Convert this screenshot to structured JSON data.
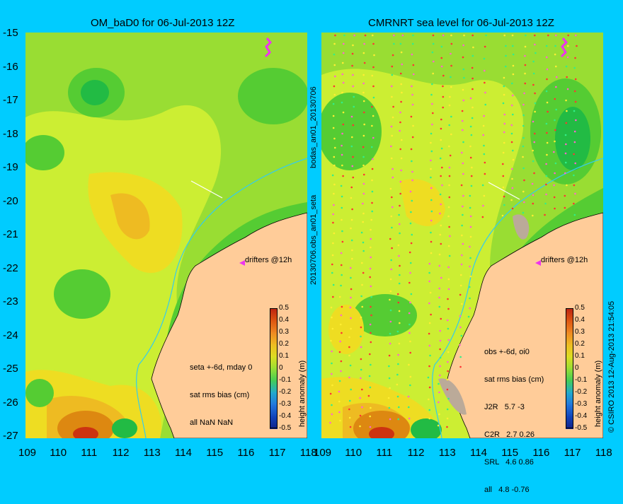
{
  "left_panel": {
    "title": "OM_baD0 for 06-Jul-2013 12Z",
    "drifters_label": "drifters @12h",
    "info_lines": [
      "seta +-6d, mday 0",
      "sat rms bias (cm)",
      "all NaN NaN"
    ]
  },
  "right_panel": {
    "title": "CMRNRT sea level  for 06-Jul-2013 12Z",
    "drifters_label": "drifters @12h",
    "info_lines": [
      "obs +-6d, oi0",
      "sat rms bias (cm)",
      "J2R   5.7 -3",
      "C2R   2.7 0.26",
      "SRL   4.6 0.86",
      "all   4.8 -0.76"
    ]
  },
  "side_labels": {
    "middle_top": "bodas_an01_20130706",
    "middle_bottom": "20130706.obs_an01_seta",
    "right_edge": "© CSIRO 2013  12-Aug-2013 21:54:05"
  },
  "colorbar": {
    "label": "height anomaly (m)",
    "ticks": [
      "0.5",
      "0.4",
      "0.3",
      "0.2",
      "0.1",
      "0",
      "-0.1",
      "-0.2",
      "-0.3",
      "-0.4",
      "-0.5"
    ]
  },
  "axes": {
    "y_ticks": [
      "-15",
      "-16",
      "-17",
      "-18",
      "-19",
      "-20",
      "-21",
      "-22",
      "-23",
      "-24",
      "-25",
      "-26",
      "-27"
    ],
    "x_ticks_left": [
      "109",
      "110",
      "111",
      "112",
      "113",
      "114",
      "115",
      "116",
      "117",
      "118"
    ],
    "x_ticks_right": [
      "109",
      "110",
      "111",
      "112",
      "113",
      "114",
      "115",
      "116",
      "117",
      "118"
    ]
  },
  "colors": {
    "background": "#00ccff",
    "land": "#ffcc99",
    "green_light": "#99dd33",
    "green": "#55cc33",
    "green_dark": "#22bb44",
    "yellow_green": "#ccee33",
    "yellow": "#eedd22",
    "orange": "#eebb22",
    "orange_dark": "#dd8811",
    "red": "#cc3311",
    "cyan_line": "#33ccee",
    "drifter": "#ee33ee"
  }
}
